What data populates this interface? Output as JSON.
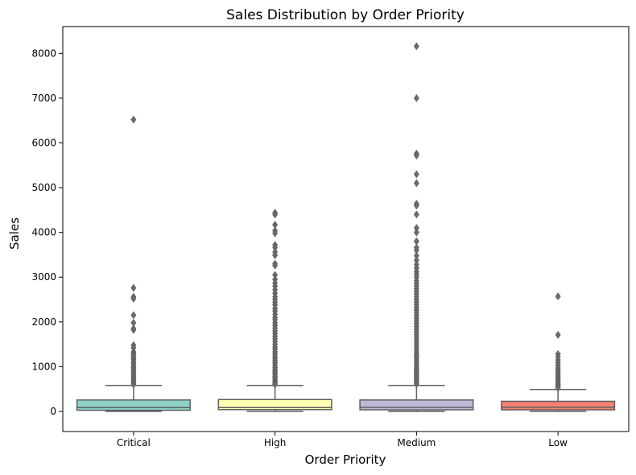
{
  "chart_data": {
    "type": "box",
    "title": "Sales Distribution by Order Priority",
    "xlabel": "Order Priority",
    "ylabel": "Sales",
    "categories": [
      "Critical",
      "High",
      "Medium",
      "Low"
    ],
    "ylim": [
      -450,
      8600
    ],
    "yticks": [
      0,
      1000,
      2000,
      3000,
      4000,
      5000,
      6000,
      7000,
      8000
    ],
    "grid": false,
    "series": [
      {
        "category": "Critical",
        "color": "#8dd3c7",
        "min": 0,
        "q1": 25,
        "median": 85,
        "q3": 255,
        "whisker_high": 580,
        "outliers": [
          6520,
          2760,
          2560,
          2520,
          2150,
          1980,
          1850,
          1820,
          1480,
          1420,
          1330,
          1290,
          1250,
          1200,
          1160,
          1110,
          1070,
          1020,
          980,
          940,
          900,
          860,
          820,
          780,
          740,
          700,
          660,
          630,
          600
        ]
      },
      {
        "category": "High",
        "color": "#ffffb3",
        "min": 0,
        "q1": 40,
        "median": 85,
        "q3": 265,
        "whisker_high": 580,
        "outliers": [
          4440,
          4400,
          4170,
          4040,
          3980,
          3720,
          3660,
          3560,
          3490,
          3300,
          3260,
          3050,
          2950,
          2870,
          2800,
          2720,
          2640,
          2560,
          2500,
          2440,
          2380,
          2300,
          2240,
          2170,
          2100,
          2050,
          1980,
          1920,
          1860,
          1800,
          1740,
          1680,
          1620,
          1560,
          1500,
          1440,
          1390,
          1330,
          1280,
          1230,
          1180,
          1130,
          1080,
          1030,
          980,
          940,
          900,
          860,
          820,
          780,
          740,
          700,
          660,
          630,
          600
        ]
      },
      {
        "category": "Medium",
        "color": "#bebada",
        "min": 0,
        "q1": 35,
        "median": 90,
        "q3": 255,
        "whisker_high": 580,
        "outliers": [
          8160,
          7000,
          5760,
          5720,
          5300,
          5100,
          4640,
          4600,
          4400,
          4100,
          4000,
          3800,
          3660,
          3600,
          3480,
          3380,
          3280,
          3200,
          3120,
          3060,
          3000,
          2920,
          2860,
          2800,
          2740,
          2680,
          2620,
          2560,
          2500,
          2440,
          2380,
          2320,
          2260,
          2200,
          2140,
          2080,
          2020,
          1960,
          1900,
          1840,
          1780,
          1720,
          1660,
          1600,
          1540,
          1480,
          1420,
          1360,
          1300,
          1250,
          1200,
          1150,
          1100,
          1050,
          1000,
          960,
          920,
          880,
          840,
          800,
          760,
          720,
          680,
          640,
          610
        ]
      },
      {
        "category": "Low",
        "color": "#fb8072",
        "min": 0,
        "q1": 35,
        "median": 95,
        "q3": 225,
        "whisker_high": 490,
        "outliers": [
          2570,
          1710,
          1280,
          1220,
          1150,
          1090,
          1030,
          970,
          920,
          870,
          830,
          790,
          750,
          710,
          670,
          640,
          610,
          580,
          550,
          520
        ]
      }
    ]
  }
}
